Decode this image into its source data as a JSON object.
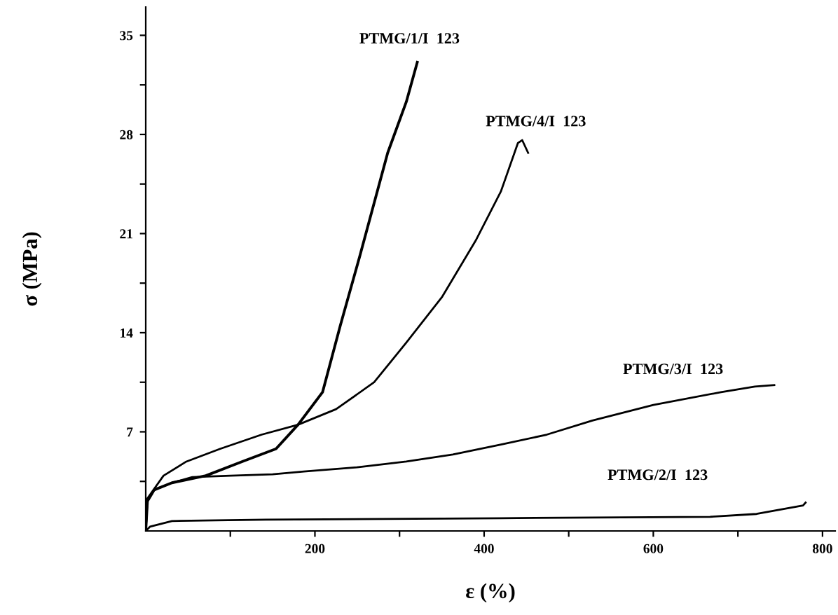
{
  "chart_data": {
    "type": "line",
    "xlabel": "ε (%)",
    "ylabel": "σ (MPa)",
    "xlim": [
      0,
      815
    ],
    "ylim": [
      0,
      37
    ],
    "xticks": [
      {
        "value": 100,
        "label": null
      },
      200,
      {
        "value": 300,
        "label": null
      },
      400,
      {
        "value": 500,
        "label": null
      },
      600,
      {
        "value": 700,
        "label": null
      },
      800
    ],
    "yticks": [
      {
        "value": 3.5,
        "label": null
      },
      7,
      {
        "value": 10.5,
        "label": null
      },
      14,
      {
        "value": 17.5,
        "label": null
      },
      21,
      {
        "value": 24.5,
        "label": null
      },
      28,
      {
        "value": 31.5,
        "label": null
      },
      35
    ],
    "grid": false,
    "legend": false,
    "marker": "none",
    "line_style": "solid",
    "series": [
      {
        "name": "PTMG/1/I  123",
        "color": "#000000",
        "x": [
          0,
          2,
          10,
          31,
          71,
          114,
          154,
          180,
          209,
          230,
          253,
          286,
          308,
          321
        ],
        "values": [
          0,
          2.1,
          2.9,
          3.4,
          3.9,
          4.9,
          5.8,
          7.5,
          9.8,
          14.5,
          19.4,
          26.7,
          30.3,
          33.1
        ]
      },
      {
        "name": "PTMG/4/I  123",
        "color": "#000000",
        "x": [
          0,
          2,
          21,
          48,
          88,
          137,
          180,
          225,
          270,
          308,
          350,
          390,
          420,
          440,
          445,
          452
        ],
        "values": [
          0,
          2.3,
          3.9,
          4.9,
          5.8,
          6.8,
          7.5,
          8.6,
          10.5,
          13.3,
          16.5,
          20.5,
          24,
          27.4,
          27.6,
          26.7
        ]
      },
      {
        "name": "PTMG/3/I  123",
        "color": "#000000",
        "x": [
          0,
          2,
          10,
          31,
          55,
          100,
          150,
          187,
          250,
          308,
          363,
          420,
          474,
          528,
          600,
          680,
          720,
          743
        ],
        "values": [
          0,
          2.1,
          2.9,
          3.4,
          3.8,
          3.9,
          4.0,
          4.2,
          4.5,
          4.9,
          5.4,
          6.1,
          6.8,
          7.8,
          8.9,
          9.8,
          10.2,
          10.3
        ]
      },
      {
        "name": "PTMG/2/I  123",
        "color": "#000000",
        "x": [
          0,
          5,
          31,
          142,
          419,
          667,
          722,
          777,
          780
        ],
        "values": [
          0,
          0.3,
          0.7,
          0.8,
          0.9,
          1.0,
          1.2,
          1.8,
          2.0
        ]
      }
    ]
  }
}
